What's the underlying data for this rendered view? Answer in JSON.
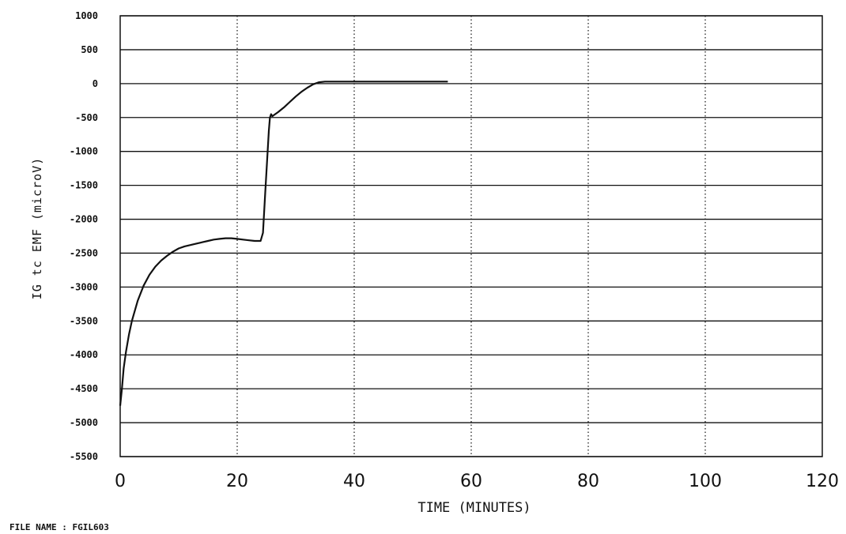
{
  "chart_data": {
    "type": "line",
    "xlabel": "TIME (MINUTES)",
    "ylabel": "IG  tc EMF (microV)",
    "xlim": [
      0,
      120
    ],
    "ylim": [
      -5500,
      1000
    ],
    "x_ticks": [
      0,
      20,
      40,
      60,
      80,
      100,
      120
    ],
    "x_tick_labels": [
      "0",
      "20",
      "40",
      "60",
      "80",
      "100",
      "120"
    ],
    "y_ticks": [
      1000,
      500,
      0,
      -500,
      -1000,
      -1500,
      -2000,
      -2500,
      -3000,
      -3500,
      -4000,
      -4500,
      -5000,
      -5500
    ],
    "y_tick_labels": [
      "1000",
      "500",
      "0",
      "-500",
      "-1000",
      "-1500",
      "-2000",
      "-2500",
      "-3000",
      "-3500",
      "-4000",
      "-4500",
      "-5000",
      "-5500"
    ],
    "grid": {
      "horizontal": "solid",
      "vertical": "dotted"
    },
    "series": [
      {
        "x": [
          0,
          0.3,
          0.6,
          1,
          1.5,
          2,
          3,
          4,
          5,
          6,
          7,
          8,
          9,
          10,
          11,
          12,
          13,
          14,
          15,
          16,
          17,
          18,
          19,
          20,
          21,
          22,
          23,
          24,
          24.4,
          24.8,
          25.0,
          25.2,
          25.4,
          25.6,
          25.8,
          26,
          26.5,
          27,
          28,
          29,
          30,
          31,
          32,
          33,
          34,
          35,
          40,
          45,
          50,
          55,
          56
        ],
        "y": [
          -4750,
          -4500,
          -4200,
          -3950,
          -3700,
          -3500,
          -3200,
          -2980,
          -2820,
          -2700,
          -2610,
          -2540,
          -2480,
          -2430,
          -2400,
          -2380,
          -2360,
          -2340,
          -2320,
          -2300,
          -2290,
          -2280,
          -2280,
          -2290,
          -2300,
          -2310,
          -2320,
          -2320,
          -2200,
          -1600,
          -1300,
          -1000,
          -700,
          -500,
          -450,
          -480,
          -450,
          -420,
          -350,
          -270,
          -190,
          -120,
          -60,
          -10,
          20,
          30,
          30,
          30,
          30,
          30,
          30
        ]
      }
    ],
    "footer": "FILE NAME : FGIL603"
  }
}
